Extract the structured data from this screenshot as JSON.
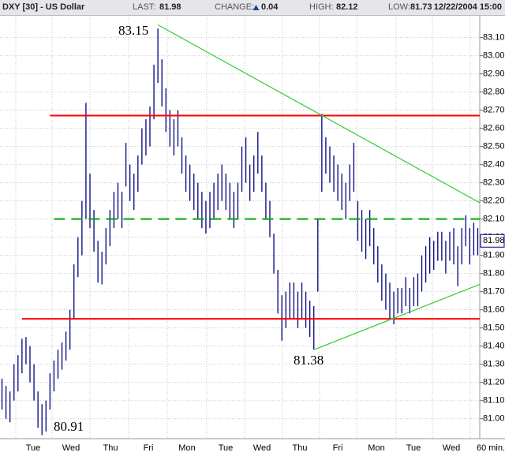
{
  "header": {
    "symbol": "DXY [30] - US Dollar",
    "last_label": "LAST:",
    "last": 81.98,
    "change_label": "CHANGE:",
    "change": 0.04,
    "high_label": "HIGH:",
    "high": 82.12,
    "low_label": "LOW:",
    "low": 81.73,
    "datetime": "12/22/2004 15:00"
  },
  "chart_data": {
    "type": "hlc",
    "color": "#000080",
    "high": [
      81.22,
      81.18,
      81.15,
      81.3,
      81.35,
      81.44,
      81.45,
      81.4,
      81.3,
      81.15,
      81.08,
      81.1,
      81.25,
      81.32,
      81.38,
      81.42,
      81.48,
      81.6,
      81.85,
      82.0,
      82.2,
      82.74,
      82.35,
      82.15,
      81.98,
      81.92,
      82.05,
      82.15,
      82.25,
      82.3,
      82.25,
      82.52,
      82.4,
      82.35,
      82.45,
      82.6,
      82.65,
      82.72,
      82.95,
      83.15,
      82.98,
      82.82,
      82.7,
      82.65,
      82.7,
      82.55,
      82.45,
      82.4,
      82.35,
      82.3,
      82.25,
      82.2,
      82.25,
      82.3,
      82.35,
      82.4,
      82.35,
      82.3,
      82.25,
      82.3,
      82.5,
      82.55,
      82.4,
      82.45,
      82.58,
      82.45,
      82.3,
      82.2,
      82.02,
      81.82,
      81.68,
      81.7,
      81.75,
      81.75,
      81.7,
      81.75,
      81.7,
      81.65,
      81.62,
      82.1,
      82.68,
      82.55,
      82.5,
      82.45,
      82.4,
      82.35,
      82.3,
      82.4,
      82.52,
      82.2,
      82.15,
      82.1,
      82.15,
      82.05,
      81.95,
      81.85,
      81.8,
      81.75,
      81.7,
      81.72,
      81.72,
      81.78,
      81.72,
      81.78,
      81.8,
      81.9,
      81.95,
      82.0,
      81.98,
      82.03,
      82.03,
      81.98,
      82.03,
      82.05,
      81.95,
      82.05,
      82.12,
      82.05,
      82.08,
      82.05
    ],
    "low": [
      81.05,
      81.0,
      80.98,
      81.1,
      81.15,
      81.25,
      81.3,
      81.2,
      81.1,
      80.95,
      80.91,
      80.93,
      81.05,
      81.15,
      81.22,
      81.27,
      81.32,
      81.38,
      81.55,
      81.78,
      81.9,
      82.1,
      82.05,
      81.92,
      81.75,
      81.74,
      81.85,
      81.95,
      82.05,
      82.1,
      82.05,
      82.28,
      82.2,
      82.15,
      82.25,
      82.4,
      82.45,
      82.5,
      82.65,
      82.85,
      82.72,
      82.58,
      82.5,
      82.45,
      82.5,
      82.35,
      82.25,
      82.2,
      82.15,
      82.1,
      82.05,
      82.02,
      82.05,
      82.1,
      82.15,
      82.2,
      82.15,
      82.1,
      82.05,
      82.1,
      82.25,
      82.3,
      82.2,
      82.25,
      82.35,
      82.25,
      82.1,
      82.0,
      81.8,
      81.58,
      81.43,
      81.5,
      81.55,
      81.55,
      81.5,
      81.55,
      81.5,
      81.45,
      81.38,
      81.7,
      82.25,
      82.35,
      82.3,
      82.25,
      82.2,
      82.15,
      82.1,
      82.2,
      82.25,
      81.98,
      81.92,
      81.88,
      81.95,
      81.85,
      81.75,
      81.65,
      81.6,
      81.55,
      81.52,
      81.58,
      81.58,
      81.62,
      81.58,
      81.62,
      81.62,
      81.7,
      81.75,
      81.8,
      81.82,
      81.87,
      81.87,
      81.8,
      81.87,
      81.85,
      81.73,
      81.85,
      81.95,
      81.85,
      81.9,
      81.9
    ],
    "ylim": [
      80.89,
      83.22
    ],
    "yticks": [
      {
        "value": 81.0,
        "label": "81.00"
      },
      {
        "value": 81.1,
        "label": "81.10"
      },
      {
        "value": 81.2,
        "label": "81.20"
      },
      {
        "value": 81.3,
        "label": "81.30"
      },
      {
        "value": 81.4,
        "label": "81.40"
      },
      {
        "value": 81.5,
        "label": "81.50"
      },
      {
        "value": 81.6,
        "label": "81.60"
      },
      {
        "value": 81.7,
        "label": "81.70"
      },
      {
        "value": 81.8,
        "label": "81.80"
      },
      {
        "value": 81.9,
        "label": "81.90"
      },
      {
        "value": 82.0,
        "label": "82.00"
      },
      {
        "value": 82.1,
        "label": "82.10"
      },
      {
        "value": 82.2,
        "label": "82.20"
      },
      {
        "value": 82.3,
        "label": "82.30"
      },
      {
        "value": 82.4,
        "label": "82.40"
      },
      {
        "value": 82.5,
        "label": "82.50"
      },
      {
        "value": 82.6,
        "label": "82.60"
      },
      {
        "value": 82.7,
        "label": "82.70"
      },
      {
        "value": 82.8,
        "label": "82.80"
      },
      {
        "value": 82.9,
        "label": "82.90"
      },
      {
        "value": 83.0,
        "label": "83.00"
      },
      {
        "value": 83.1,
        "label": "83.10"
      }
    ],
    "grid": true,
    "categories": [
      "Tue",
      "Wed",
      "Thu",
      "Fri",
      "Mon",
      "Tue",
      "Wed",
      "Thu",
      "Fri",
      "Mon",
      "Tue",
      "Wed"
    ],
    "interval": "60 min.",
    "last_marker": 81.98,
    "annotations": [
      "83.15",
      "80.91",
      "81.38"
    ],
    "annotation_color": "#0000cc",
    "trend_lines": [
      {
        "color": "#ff0000",
        "dashed": false,
        "x": [
          12,
          119.5
        ],
        "y": [
          82.67,
          82.67
        ]
      },
      {
        "color": "#ff0000",
        "dashed": false,
        "x": [
          5,
          119.5
        ],
        "y": [
          81.55,
          81.55
        ]
      },
      {
        "color": "#00aa00",
        "dashed": true,
        "x": [
          13,
          119.5
        ],
        "y": [
          82.1,
          82.1
        ]
      },
      {
        "color": "#33cc33",
        "dashed": false,
        "x": [
          39,
          119.5
        ],
        "y": [
          83.17,
          82.19
        ]
      },
      {
        "color": "#33cc33",
        "dashed": false,
        "x": [
          78,
          119.5
        ],
        "y": [
          81.38,
          81.74
        ]
      }
    ]
  }
}
